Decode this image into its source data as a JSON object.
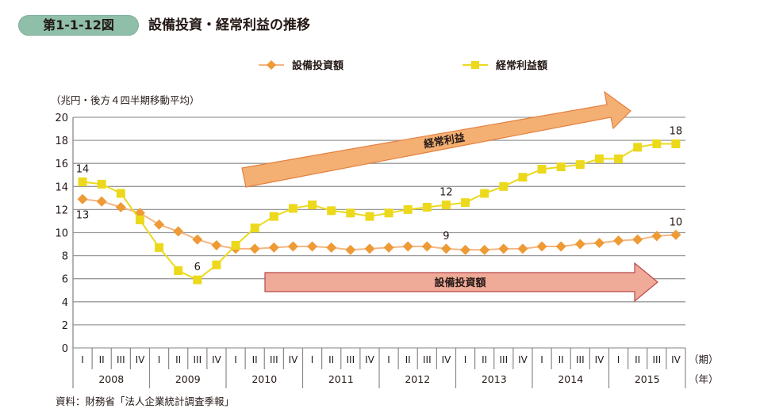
{
  "figure": {
    "number": "第1-1-12図",
    "title": "設備投資・経常利益の推移",
    "unit_label": "（兆円・後方４四半期移動平均）",
    "source": "資料：財務省「法人企業統計調査季報」"
  },
  "chart_data": {
    "type": "line",
    "title": "設備投資・経常利益の推移",
    "ylabel": "兆円・後方４四半期移動平均",
    "xlabel": "期 / 年",
    "ylim": [
      0,
      20
    ],
    "yticks": [
      0,
      2,
      4,
      6,
      8,
      10,
      12,
      14,
      16,
      18,
      20
    ],
    "grid": true,
    "legend_position": "top",
    "quarter_labels": [
      "I",
      "II",
      "III",
      "IV"
    ],
    "years": [
      "2008",
      "2009",
      "2010",
      "2011",
      "2012",
      "2013",
      "2014",
      "2015"
    ],
    "x_unit_quarter": "（期）",
    "x_unit_year": "（年）",
    "x": [
      "2008-I",
      "2008-II",
      "2008-III",
      "2008-IV",
      "2009-I",
      "2009-II",
      "2009-III",
      "2009-IV",
      "2010-I",
      "2010-II",
      "2010-III",
      "2010-IV",
      "2011-I",
      "2011-II",
      "2011-III",
      "2011-IV",
      "2012-I",
      "2012-II",
      "2012-III",
      "2012-IV",
      "2013-I",
      "2013-II",
      "2013-III",
      "2013-IV",
      "2014-I",
      "2014-II",
      "2014-III",
      "2014-IV",
      "2015-I",
      "2015-II",
      "2015-III",
      "2015-IV"
    ],
    "series": [
      {
        "name": "設備投資額",
        "color": "#ee9a35",
        "line_color": "#f4b684",
        "marker": "diamond",
        "values": [
          12.9,
          12.7,
          12.2,
          11.7,
          10.7,
          10.1,
          9.4,
          8.9,
          8.6,
          8.6,
          8.7,
          8.8,
          8.8,
          8.7,
          8.5,
          8.6,
          8.7,
          8.8,
          8.8,
          8.6,
          8.5,
          8.5,
          8.6,
          8.6,
          8.8,
          8.8,
          9.0,
          9.1,
          9.3,
          9.4,
          9.7,
          9.8
        ]
      },
      {
        "name": "経常利益額",
        "color": "#ecd91c",
        "line_color": "#ecd91c",
        "marker": "square",
        "values": [
          14.4,
          14.2,
          13.4,
          11.1,
          8.7,
          6.7,
          5.9,
          7.2,
          8.9,
          10.4,
          11.4,
          12.1,
          12.4,
          11.9,
          11.7,
          11.4,
          11.7,
          12.0,
          12.2,
          12.4,
          12.6,
          13.4,
          14.0,
          14.8,
          15.5,
          15.7,
          15.9,
          16.4,
          16.4,
          17.4,
          17.7,
          17.7
        ]
      }
    ],
    "annotations": [
      {
        "text": "14",
        "series": 1,
        "index": 0,
        "placement": "above"
      },
      {
        "text": "13",
        "series": 0,
        "index": 0,
        "placement": "below"
      },
      {
        "text": "6",
        "series": 1,
        "index": 6,
        "placement": "above"
      },
      {
        "text": "12",
        "series": 1,
        "index": 19,
        "placement": "above"
      },
      {
        "text": "9",
        "series": 0,
        "index": 19,
        "placement": "above"
      },
      {
        "text": "18",
        "series": 1,
        "index": 31,
        "placement": "above"
      },
      {
        "text": "10",
        "series": 0,
        "index": 31,
        "placement": "above"
      }
    ],
    "trend_arrows": [
      {
        "label": "経常利益",
        "color": "#f3b072",
        "border": "#e57f3f",
        "direction": "up-right"
      },
      {
        "label": "設備投資額",
        "color": "#f0aa98",
        "border": "#b8474a",
        "direction": "right"
      }
    ]
  }
}
